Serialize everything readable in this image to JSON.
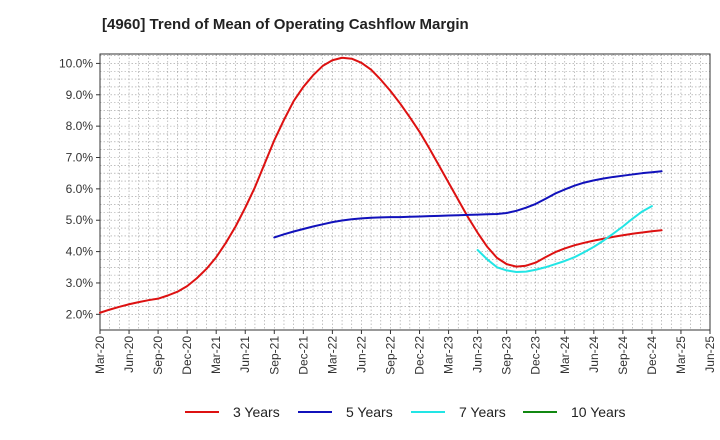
{
  "title": "[4960]  Trend of Mean of Operating Cashflow Margin",
  "colors": {
    "three_years": "#dd1111",
    "five_years": "#1111bb",
    "seven_years": "#22e5e5",
    "ten_years": "#118811",
    "grid": "#999999",
    "axis": "#333333"
  },
  "legend": [
    {
      "name": "3 Years",
      "color": "#dd1111"
    },
    {
      "name": "5 Years",
      "color": "#1111bb"
    },
    {
      "name": "7 Years",
      "color": "#22e5e5"
    },
    {
      "name": "10 Years",
      "color": "#118811"
    }
  ],
  "chart_data": {
    "type": "line",
    "title": "[4960]  Trend of Mean of Operating Cashflow Margin",
    "xlabel": "",
    "ylabel": "",
    "ylim": [
      1.5,
      10.3
    ],
    "yticks": [
      2.0,
      3.0,
      4.0,
      5.0,
      6.0,
      7.0,
      8.0,
      9.0,
      10.0
    ],
    "ytick_labels": [
      "2.0%",
      "3.0%",
      "4.0%",
      "5.0%",
      "6.0%",
      "7.0%",
      "8.0%",
      "9.0%",
      "10.0%"
    ],
    "x_ticks": [
      "Mar-20",
      "Jun-20",
      "Sep-20",
      "Dec-20",
      "Mar-21",
      "Jun-21",
      "Sep-21",
      "Dec-21",
      "Mar-22",
      "Jun-22",
      "Sep-22",
      "Dec-22",
      "Mar-23",
      "Jun-23",
      "Sep-23",
      "Dec-23",
      "Mar-24",
      "Jun-24",
      "Sep-24",
      "Dec-24",
      "Mar-25",
      "Jun-25"
    ],
    "grid": true,
    "legend_position": "bottom",
    "series": [
      {
        "name": "3 Years",
        "color": "#dd1111",
        "points": [
          [
            "Mar-20",
            2.05
          ],
          [
            "Apr-20",
            2.15
          ],
          [
            "May-20",
            2.24
          ],
          [
            "Jun-20",
            2.32
          ],
          [
            "Jul-20",
            2.39
          ],
          [
            "Aug-20",
            2.45
          ],
          [
            "Sep-20",
            2.5
          ],
          [
            "Oct-20",
            2.6
          ],
          [
            "Nov-20",
            2.72
          ],
          [
            "Dec-20",
            2.9
          ],
          [
            "Jan-21",
            3.15
          ],
          [
            "Feb-21",
            3.45
          ],
          [
            "Mar-21",
            3.82
          ],
          [
            "Apr-21",
            4.28
          ],
          [
            "May-21",
            4.8
          ],
          [
            "Jun-21",
            5.4
          ],
          [
            "Jul-21",
            6.05
          ],
          [
            "Aug-21",
            6.8
          ],
          [
            "Sep-21",
            7.55
          ],
          [
            "Oct-21",
            8.2
          ],
          [
            "Nov-21",
            8.8
          ],
          [
            "Dec-21",
            9.25
          ],
          [
            "Jan-22",
            9.62
          ],
          [
            "Feb-22",
            9.92
          ],
          [
            "Mar-22",
            10.1
          ],
          [
            "Apr-22",
            10.18
          ],
          [
            "May-22",
            10.15
          ],
          [
            "Jun-22",
            10.02
          ],
          [
            "Jul-22",
            9.8
          ],
          [
            "Aug-22",
            9.48
          ],
          [
            "Sep-22",
            9.12
          ],
          [
            "Oct-22",
            8.72
          ],
          [
            "Nov-22",
            8.28
          ],
          [
            "Dec-22",
            7.82
          ],
          [
            "Jan-23",
            7.3
          ],
          [
            "Feb-23",
            6.75
          ],
          [
            "Mar-23",
            6.2
          ],
          [
            "Apr-23",
            5.65
          ],
          [
            "May-23",
            5.1
          ],
          [
            "Jun-23",
            4.6
          ],
          [
            "Jul-23",
            4.15
          ],
          [
            "Aug-23",
            3.8
          ],
          [
            "Sep-23",
            3.6
          ],
          [
            "Oct-23",
            3.52
          ],
          [
            "Nov-23",
            3.55
          ],
          [
            "Dec-23",
            3.65
          ],
          [
            "Jan-24",
            3.82
          ],
          [
            "Feb-24",
            3.98
          ],
          [
            "Mar-24",
            4.1
          ],
          [
            "Apr-24",
            4.2
          ],
          [
            "May-24",
            4.28
          ],
          [
            "Jun-24",
            4.35
          ],
          [
            "Jul-24",
            4.41
          ],
          [
            "Aug-24",
            4.47
          ],
          [
            "Sep-24",
            4.52
          ],
          [
            "Oct-24",
            4.57
          ],
          [
            "Nov-24",
            4.61
          ],
          [
            "Dec-24",
            4.65
          ],
          [
            "Jan-25",
            4.68
          ]
        ]
      },
      {
        "name": "5 Years",
        "color": "#1111bb",
        "points": [
          [
            "Sep-21",
            4.45
          ],
          [
            "Oct-21",
            4.55
          ],
          [
            "Nov-21",
            4.64
          ],
          [
            "Dec-21",
            4.72
          ],
          [
            "Jan-22",
            4.8
          ],
          [
            "Feb-22",
            4.87
          ],
          [
            "Mar-22",
            4.94
          ],
          [
            "Apr-22",
            4.99
          ],
          [
            "May-22",
            5.03
          ],
          [
            "Jun-22",
            5.06
          ],
          [
            "Jul-22",
            5.08
          ],
          [
            "Aug-22",
            5.09
          ],
          [
            "Sep-22",
            5.1
          ],
          [
            "Oct-22",
            5.1
          ],
          [
            "Nov-22",
            5.11
          ],
          [
            "Dec-22",
            5.12
          ],
          [
            "Jan-23",
            5.13
          ],
          [
            "Feb-23",
            5.14
          ],
          [
            "Mar-23",
            5.15
          ],
          [
            "Apr-23",
            5.16
          ],
          [
            "May-23",
            5.17
          ],
          [
            "Jun-23",
            5.18
          ],
          [
            "Jul-23",
            5.19
          ],
          [
            "Aug-23",
            5.2
          ],
          [
            "Sep-23",
            5.23
          ],
          [
            "Oct-23",
            5.3
          ],
          [
            "Nov-23",
            5.4
          ],
          [
            "Dec-23",
            5.52
          ],
          [
            "Jan-24",
            5.68
          ],
          [
            "Feb-24",
            5.85
          ],
          [
            "Mar-24",
            5.98
          ],
          [
            "Apr-24",
            6.1
          ],
          [
            "May-24",
            6.2
          ],
          [
            "Jun-24",
            6.27
          ],
          [
            "Jul-24",
            6.33
          ],
          [
            "Aug-24",
            6.38
          ],
          [
            "Sep-24",
            6.42
          ],
          [
            "Oct-24",
            6.46
          ],
          [
            "Nov-24",
            6.5
          ],
          [
            "Dec-24",
            6.53
          ],
          [
            "Jan-25",
            6.56
          ]
        ]
      },
      {
        "name": "7 Years",
        "color": "#22e5e5",
        "points": [
          [
            "Jun-23",
            4.05
          ],
          [
            "Jul-23",
            3.75
          ],
          [
            "Aug-23",
            3.5
          ],
          [
            "Sep-23",
            3.4
          ],
          [
            "Oct-23",
            3.35
          ],
          [
            "Nov-23",
            3.36
          ],
          [
            "Dec-23",
            3.42
          ],
          [
            "Jan-24",
            3.5
          ],
          [
            "Feb-24",
            3.6
          ],
          [
            "Mar-24",
            3.7
          ],
          [
            "Apr-24",
            3.82
          ],
          [
            "May-24",
            3.98
          ],
          [
            "Jun-24",
            4.15
          ],
          [
            "Jul-24",
            4.35
          ],
          [
            "Aug-24",
            4.57
          ],
          [
            "Sep-24",
            4.8
          ],
          [
            "Oct-24",
            5.05
          ],
          [
            "Nov-24",
            5.28
          ],
          [
            "Dec-24",
            5.45
          ]
        ]
      },
      {
        "name": "10 Years",
        "color": "#118811",
        "points": []
      }
    ]
  }
}
